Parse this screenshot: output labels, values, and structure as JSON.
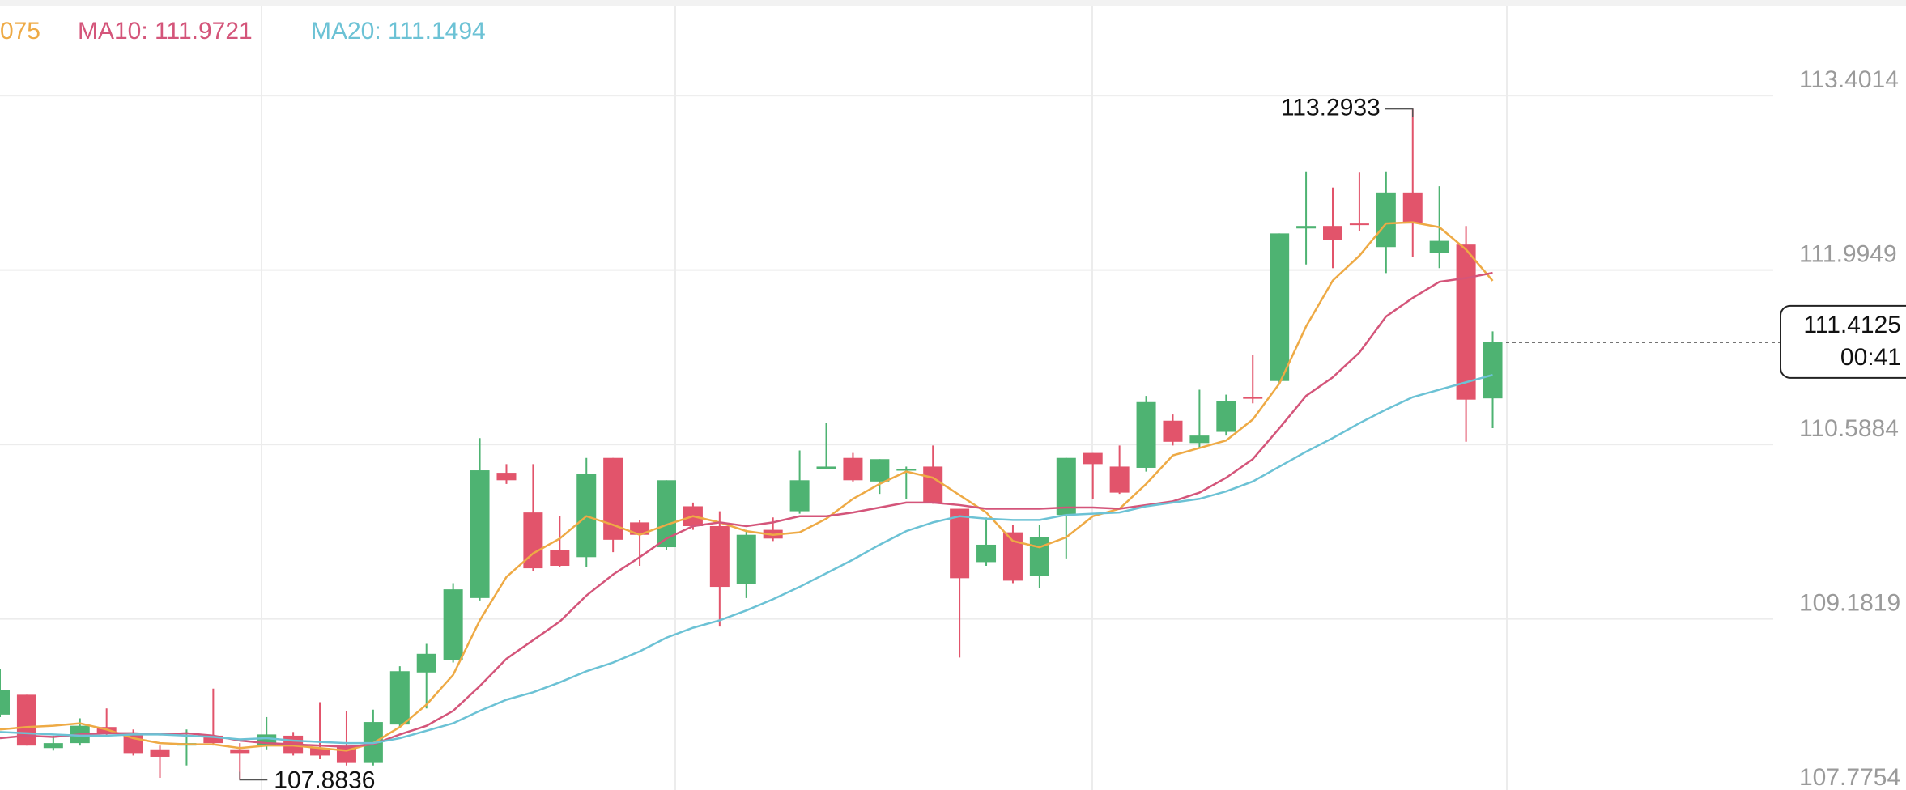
{
  "chart_data": {
    "type": "candlestick",
    "up_color": "#4eb372",
    "down_color": "#e2546b",
    "open": [
      108.41,
      108.57,
      108.14,
      108.18,
      108.31,
      108.26,
      108.13,
      108.16,
      108.24,
      108.13,
      108.16,
      108.24,
      108.14,
      108.16,
      108.02,
      108.33,
      108.75,
      108.85,
      109.35,
      110.36,
      110.04,
      109.74,
      109.68,
      110.48,
      109.96,
      109.76,
      110.09,
      109.93,
      109.46,
      109.9,
      110.05,
      110.39,
      110.48,
      110.29,
      110.38,
      110.41,
      110.07,
      109.64,
      109.88,
      109.53,
      110.02,
      110.52,
      110.41,
      110.4,
      110.78,
      110.6,
      110.69,
      110.97,
      111.1,
      112.33,
      112.35,
      112.37,
      112.18,
      112.62,
      112.13,
      112.2,
      110.96
    ],
    "high": [
      108.78,
      108.57,
      108.24,
      108.38,
      108.46,
      108.29,
      108.16,
      108.29,
      108.62,
      108.18,
      108.39,
      108.27,
      108.51,
      108.44,
      108.45,
      108.8,
      108.98,
      109.47,
      110.64,
      110.43,
      110.43,
      110.01,
      110.48,
      110.48,
      109.98,
      110.3,
      110.12,
      110.05,
      109.9,
      110.0,
      110.54,
      110.76,
      110.52,
      110.47,
      110.41,
      110.58,
      110.07,
      110.0,
      109.94,
      109.94,
      110.48,
      110.52,
      110.58,
      110.98,
      110.83,
      111.03,
      110.99,
      111.31,
      112.29,
      112.79,
      112.66,
      112.78,
      112.79,
      113.2933,
      112.67,
      112.35,
      111.5
    ],
    "low": [
      108.39,
      108.16,
      108.12,
      108.16,
      108.24,
      108.08,
      107.9,
      108.0,
      108.16,
      107.8836,
      108.13,
      108.08,
      108.05,
      108.0,
      108.0,
      108.31,
      108.46,
      108.83,
      109.33,
      110.27,
      109.57,
      109.6,
      109.6,
      109.72,
      109.61,
      109.74,
      109.9,
      109.12,
      109.35,
      109.81,
      110.03,
      110.39,
      110.29,
      110.19,
      110.15,
      110.11,
      108.87,
      109.61,
      109.47,
      109.43,
      109.67,
      110.15,
      110.19,
      110.37,
      110.58,
      110.56,
      110.66,
      110.92,
      111.08,
      112.04,
      112.01,
      112.31,
      111.97,
      112.1,
      112.01,
      110.61,
      110.72
    ],
    "close": [
      108.61,
      108.16,
      108.18,
      108.32,
      108.26,
      108.1,
      108.07,
      108.18,
      108.18,
      108.1,
      108.25,
      108.1,
      108.08,
      108.02,
      108.35,
      108.76,
      108.9,
      109.42,
      110.38,
      110.3,
      109.59,
      109.61,
      110.35,
      109.82,
      109.86,
      110.3,
      109.93,
      109.44,
      109.86,
      109.83,
      110.3,
      110.41,
      110.3,
      110.47,
      110.39,
      110.12,
      109.51,
      109.78,
      109.49,
      109.84,
      110.48,
      110.43,
      110.2,
      110.93,
      110.61,
      110.66,
      110.94,
      110.96,
      112.29,
      112.35,
      112.24,
      112.36,
      112.62,
      112.37,
      112.23,
      110.95,
      111.4125
    ],
    "series": [
      {
        "name": "075",
        "color": "#eeaa45",
        "values": [
          108.29,
          108.31,
          108.32,
          108.34,
          108.29,
          108.22,
          108.18,
          108.17,
          108.17,
          108.14,
          108.16,
          108.16,
          108.14,
          108.12,
          108.18,
          108.31,
          108.49,
          108.73,
          109.17,
          109.52,
          109.71,
          109.83,
          110.01,
          109.94,
          109.86,
          109.94,
          110.01,
          109.96,
          109.89,
          109.86,
          109.88,
          109.99,
          110.15,
          110.27,
          110.37,
          110.32,
          110.18,
          110.04,
          109.81,
          109.76,
          109.84,
          110.01,
          110.07,
          110.27,
          110.5,
          110.56,
          110.62,
          110.79,
          111.08,
          111.54,
          111.91,
          112.11,
          112.37,
          112.38,
          112.34,
          112.16,
          111.9075
        ]
      },
      {
        "name": "MA10: 111.9721",
        "color": "#d4557a",
        "values": [
          108.22,
          108.24,
          108.23,
          108.25,
          108.26,
          108.26,
          108.25,
          108.26,
          108.24,
          108.2,
          108.18,
          108.17,
          108.16,
          108.15,
          108.17,
          108.25,
          108.32,
          108.44,
          108.64,
          108.86,
          109.01,
          109.16,
          109.37,
          109.54,
          109.68,
          109.83,
          109.93,
          109.96,
          109.93,
          109.96,
          110.01,
          110.01,
          110.04,
          110.08,
          110.12,
          110.12,
          110.1,
          110.07,
          110.07,
          110.07,
          110.08,
          110.08,
          110.07,
          110.1,
          110.13,
          110.2,
          110.32,
          110.47,
          110.72,
          110.98,
          111.13,
          111.33,
          111.62,
          111.77,
          111.9,
          111.93,
          111.9721
        ]
      },
      {
        "name": "MA20: 111.1494",
        "color": "#6cc2d5",
        "values": [
          108.27,
          108.26,
          108.25,
          108.24,
          108.24,
          108.25,
          108.25,
          108.24,
          108.23,
          108.21,
          108.22,
          108.2,
          108.19,
          108.18,
          108.18,
          108.22,
          108.28,
          108.34,
          108.44,
          108.53,
          108.59,
          108.67,
          108.76,
          108.83,
          108.92,
          109.03,
          109.11,
          109.17,
          109.25,
          109.34,
          109.44,
          109.55,
          109.66,
          109.78,
          109.89,
          109.96,
          110.01,
          109.99,
          109.98,
          109.98,
          110.02,
          110.03,
          110.04,
          110.09,
          110.12,
          110.15,
          110.21,
          110.29,
          110.41,
          110.53,
          110.64,
          110.76,
          110.87,
          110.97,
          111.03,
          111.09,
          111.1494
        ]
      }
    ],
    "ylim": [
      107.75,
      114.12
    ],
    "yticks": [
      113.4014,
      111.9949,
      110.5884,
      109.1819,
      107.7754
    ],
    "grid": true,
    "last_price": 111.4125,
    "countdown": "00:41"
  }
}
